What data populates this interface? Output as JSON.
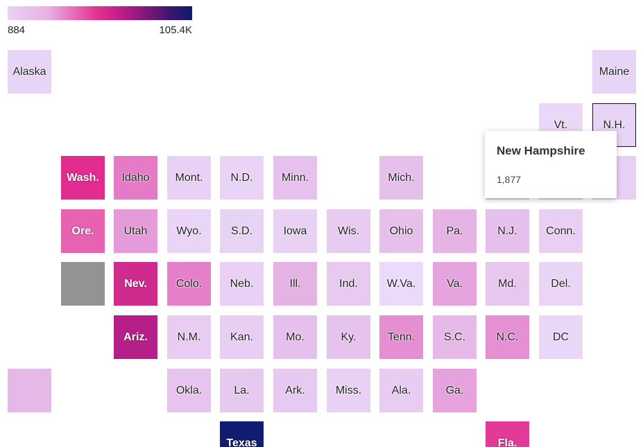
{
  "legend": {
    "min_label": "884",
    "max_label": "105.4K",
    "color_stops": [
      "#e8d4f4",
      "#e8b0e4",
      "#e2348f",
      "#c41e8a",
      "#7a1878",
      "#3d1670",
      "#0f1a6e"
    ]
  },
  "tooltip": {
    "title": "New Hampshire",
    "value": "1,877"
  },
  "selected_state": "N.H.",
  "states": [
    {
      "label": "Alaska",
      "row": 0,
      "col": 0,
      "color": "#e8d4f6"
    },
    {
      "label": "Maine",
      "row": 0,
      "col": 11,
      "color": "#e8d4f6"
    },
    {
      "label": "Vt.",
      "row": 1,
      "col": 10,
      "color": "#ebd7f7"
    },
    {
      "label": "N.H.",
      "row": 1,
      "col": 11,
      "color": "#e8d4f6"
    },
    {
      "label": "Wash.",
      "row": 2,
      "col": 1,
      "color": "#e32c90"
    },
    {
      "label": "Idaho",
      "row": 2,
      "col": 2,
      "color": "#e57bc7"
    },
    {
      "label": "Mont.",
      "row": 2,
      "col": 3,
      "color": "#e8d1f4"
    },
    {
      "label": "N.D.",
      "row": 2,
      "col": 4,
      "color": "#ead4f6"
    },
    {
      "label": "Minn.",
      "row": 2,
      "col": 5,
      "color": "#e6c1ed"
    },
    {
      "label": "Mich.",
      "row": 2,
      "col": 7,
      "color": "#e6bfeb"
    },
    {
      "label": "",
      "row": 2,
      "col": 9,
      "color": "#e8c6ef"
    },
    {
      "label": "",
      "row": 2,
      "col": 10,
      "color": "#e8c6ef"
    },
    {
      "label": "",
      "row": 2,
      "col": 11,
      "color": "#e8d0f4"
    },
    {
      "label": "Ore.",
      "row": 3,
      "col": 1,
      "color": "#e762b0"
    },
    {
      "label": "Utah",
      "row": 3,
      "col": 2,
      "color": "#e59ad9"
    },
    {
      "label": "Wyo.",
      "row": 3,
      "col": 3,
      "color": "#ead5f7"
    },
    {
      "label": "S.D.",
      "row": 3,
      "col": 4,
      "color": "#e9d3f5"
    },
    {
      "label": "Iowa",
      "row": 3,
      "col": 5,
      "color": "#e9d1f4"
    },
    {
      "label": "Wis.",
      "row": 3,
      "col": 6,
      "color": "#e8cbf1"
    },
    {
      "label": "Ohio",
      "row": 3,
      "col": 7,
      "color": "#e6bfeb"
    },
    {
      "label": "Pa.",
      "row": 3,
      "col": 8,
      "color": "#e6b3e5"
    },
    {
      "label": "N.J.",
      "row": 3,
      "col": 9,
      "color": "#e6c0ec"
    },
    {
      "label": "Conn.",
      "row": 3,
      "col": 10,
      "color": "#e8cff3"
    },
    {
      "label": "",
      "row": 4,
      "col": 1,
      "color": "#939393"
    },
    {
      "label": "Nev.",
      "row": 4,
      "col": 2,
      "color": "#cf2a8e"
    },
    {
      "label": "Colo.",
      "row": 4,
      "col": 3,
      "color": "#e57fc9"
    },
    {
      "label": "Neb.",
      "row": 4,
      "col": 4,
      "color": "#e8d1f4"
    },
    {
      "label": "Ill.",
      "row": 4,
      "col": 5,
      "color": "#e5b2e4"
    },
    {
      "label": "Ind.",
      "row": 4,
      "col": 6,
      "color": "#e8c9f0"
    },
    {
      "label": "W.Va.",
      "row": 4,
      "col": 7,
      "color": "#ebdaf9"
    },
    {
      "label": "Va.",
      "row": 4,
      "col": 8,
      "color": "#e5a4de"
    },
    {
      "label": "Md.",
      "row": 4,
      "col": 9,
      "color": "#e8c7ef"
    },
    {
      "label": "Del.",
      "row": 4,
      "col": 10,
      "color": "#ead5f7"
    },
    {
      "label": "Ariz.",
      "row": 5,
      "col": 2,
      "color": "#b42088"
    },
    {
      "label": "N.M.",
      "row": 5,
      "col": 3,
      "color": "#e8ccf2"
    },
    {
      "label": "Kan.",
      "row": 5,
      "col": 4,
      "color": "#e8cef3"
    },
    {
      "label": "Mo.",
      "row": 5,
      "col": 5,
      "color": "#e6c0ec"
    },
    {
      "label": "Ky.",
      "row": 5,
      "col": 6,
      "color": "#e6c3ed"
    },
    {
      "label": "Tenn.",
      "row": 5,
      "col": 7,
      "color": "#e58fd2"
    },
    {
      "label": "S.C.",
      "row": 5,
      "col": 8,
      "color": "#e6b9e8"
    },
    {
      "label": "N.C.",
      "row": 5,
      "col": 9,
      "color": "#e590d3"
    },
    {
      "label": "DC",
      "row": 5,
      "col": 10,
      "color": "#ead7f8"
    },
    {
      "label": "",
      "row": 6,
      "col": 0,
      "color": "#e6b8e7"
    },
    {
      "label": "Okla.",
      "row": 6,
      "col": 3,
      "color": "#e7c4ee"
    },
    {
      "label": "La.",
      "row": 6,
      "col": 4,
      "color": "#e7c9f0"
    },
    {
      "label": "Ark.",
      "row": 6,
      "col": 5,
      "color": "#e7caf1"
    },
    {
      "label": "Miss.",
      "row": 6,
      "col": 6,
      "color": "#e9d1f4"
    },
    {
      "label": "Ala.",
      "row": 6,
      "col": 7,
      "color": "#e8ccf2"
    },
    {
      "label": "Ga.",
      "row": 6,
      "col": 8,
      "color": "#e5a2dd"
    },
    {
      "label": "Texas",
      "row": 7,
      "col": 4,
      "color": "#101d70"
    },
    {
      "label": "Fla.",
      "row": 7,
      "col": 9,
      "color": "#e23a96"
    }
  ]
}
